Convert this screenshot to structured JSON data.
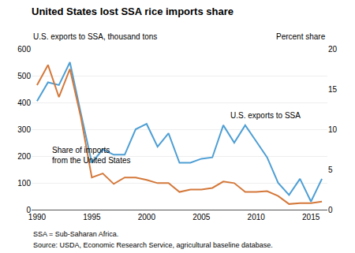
{
  "chart_data": {
    "type": "line",
    "title": "United States lost SSA rice imports share",
    "ylabel": "U.S. exports to SSA, thousand tons",
    "y2label": "Percent share",
    "annotations": [
      "U.S. exports to SSA",
      "Share of imports",
      "from the United States"
    ],
    "footnotes": [
      "SSA = Sub-Saharan Africa.",
      "Source: USDA, Economic Research Service, agricultural baseline database."
    ],
    "x": [
      1990,
      1991,
      1992,
      1993,
      1994,
      1995,
      1996,
      1997,
      1998,
      1999,
      2000,
      2001,
      2002,
      2003,
      2004,
      2005,
      2006,
      2007,
      2008,
      2009,
      2010,
      2011,
      2012,
      2013,
      2014,
      2015,
      2016
    ],
    "series": [
      {
        "color": "#4e9fd4",
        "axis": "y",
        "values": [
          405,
          475,
          465,
          550,
          360,
          175,
          225,
          205,
          205,
          300,
          320,
          235,
          285,
          175,
          175,
          190,
          195,
          315,
          250,
          315,
          255,
          195,
          100,
          55,
          115,
          30,
          115
        ]
      },
      {
        "color": "#d4783a",
        "axis": "y2",
        "values": [
          15.5,
          18.0,
          14.0,
          17.5,
          11.5,
          4.0,
          4.5,
          3.2,
          4.0,
          4.0,
          3.7,
          3.3,
          3.3,
          2.2,
          2.5,
          2.5,
          2.7,
          3.5,
          3.3,
          2.2,
          2.2,
          2.3,
          1.7,
          0.7,
          0.8,
          0.8,
          1.0
        ]
      }
    ],
    "xlim": [
      1989.5,
      2016.5
    ],
    "xticks": [
      1990,
      1995,
      2000,
      2005,
      2010,
      2015
    ],
    "ylim": [
      0,
      600
    ],
    "yticks": [
      0,
      100,
      200,
      300,
      400,
      500,
      600
    ],
    "y2lim": [
      0,
      20
    ],
    "y2ticks": [
      0,
      5,
      10,
      15,
      20
    ],
    "grid": true
  }
}
